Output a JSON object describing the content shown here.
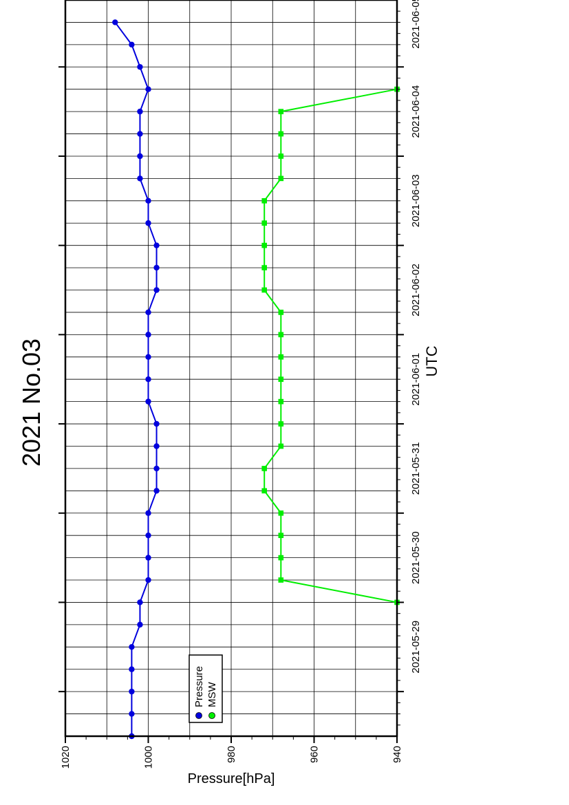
{
  "chart_data": {
    "type": "line",
    "title": "2021 No.03",
    "xlabel": "UTC",
    "ylabel": "Pressure[hPa]",
    "ylim": [
      940,
      1020
    ],
    "y_ticks": [
      940,
      960,
      980,
      1000,
      1020
    ],
    "x_range": [
      "2021-05-28T12:00",
      "2021-06-05T18:00"
    ],
    "x_ticks": [
      "2021-05-29",
      "2021-05-30",
      "2021-05-31",
      "2021-06-01",
      "2021-06-02",
      "2021-06-03",
      "2021-06-04",
      "2021-06-05"
    ],
    "grid": true,
    "legend_position": "top-left",
    "series": [
      {
        "name": "Pressure",
        "color": "#0000dd",
        "marker": "circle",
        "points": [
          [
            "2021-05-28T12:00",
            1004
          ],
          [
            "2021-05-28T18:00",
            1004
          ],
          [
            "2021-05-29T00:00",
            1004
          ],
          [
            "2021-05-29T06:00",
            1004
          ],
          [
            "2021-05-29T12:00",
            1004
          ],
          [
            "2021-05-29T18:00",
            1002
          ],
          [
            "2021-05-30T00:00",
            1002
          ],
          [
            "2021-05-30T06:00",
            1000
          ],
          [
            "2021-05-30T12:00",
            1000
          ],
          [
            "2021-05-30T18:00",
            1000
          ],
          [
            "2021-05-31T00:00",
            1000
          ],
          [
            "2021-05-31T06:00",
            998
          ],
          [
            "2021-05-31T12:00",
            998
          ],
          [
            "2021-05-31T18:00",
            998
          ],
          [
            "2021-06-01T00:00",
            998
          ],
          [
            "2021-06-01T06:00",
            1000
          ],
          [
            "2021-06-01T12:00",
            1000
          ],
          [
            "2021-06-01T18:00",
            1000
          ],
          [
            "2021-06-02T00:00",
            1000
          ],
          [
            "2021-06-02T06:00",
            1000
          ],
          [
            "2021-06-02T12:00",
            998
          ],
          [
            "2021-06-02T18:00",
            998
          ],
          [
            "2021-06-03T00:00",
            998
          ],
          [
            "2021-06-03T06:00",
            1000
          ],
          [
            "2021-06-03T12:00",
            1000
          ],
          [
            "2021-06-03T18:00",
            1002
          ],
          [
            "2021-06-04T00:00",
            1002
          ],
          [
            "2021-06-04T06:00",
            1002
          ],
          [
            "2021-06-04T12:00",
            1002
          ],
          [
            "2021-06-04T18:00",
            1000
          ],
          [
            "2021-06-05T00:00",
            1002
          ],
          [
            "2021-06-05T06:00",
            1004
          ],
          [
            "2021-06-05T12:00",
            1008
          ]
        ]
      },
      {
        "name": "MSW",
        "color": "#00ee00",
        "marker": "square",
        "points": [
          [
            "2021-05-30T00:00",
            940
          ],
          [
            "2021-05-30T06:00",
            968
          ],
          [
            "2021-05-30T12:00",
            968
          ],
          [
            "2021-05-30T18:00",
            968
          ],
          [
            "2021-05-31T00:00",
            968
          ],
          [
            "2021-05-31T06:00",
            972
          ],
          [
            "2021-05-31T12:00",
            972
          ],
          [
            "2021-05-31T18:00",
            968
          ],
          [
            "2021-06-01T00:00",
            968
          ],
          [
            "2021-06-01T06:00",
            968
          ],
          [
            "2021-06-01T12:00",
            968
          ],
          [
            "2021-06-01T18:00",
            968
          ],
          [
            "2021-06-02T00:00",
            968
          ],
          [
            "2021-06-02T06:00",
            968
          ],
          [
            "2021-06-02T12:00",
            972
          ],
          [
            "2021-06-02T18:00",
            972
          ],
          [
            "2021-06-03T00:00",
            972
          ],
          [
            "2021-06-03T06:00",
            972
          ],
          [
            "2021-06-03T12:00",
            972
          ],
          [
            "2021-06-03T18:00",
            968
          ],
          [
            "2021-06-04T00:00",
            968
          ],
          [
            "2021-06-04T06:00",
            968
          ],
          [
            "2021-06-04T12:00",
            968
          ],
          [
            "2021-06-04T18:00",
            940
          ]
        ]
      }
    ]
  }
}
